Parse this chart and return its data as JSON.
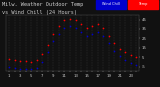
{
  "title": "Milw. Weather Outdoor Temp",
  "title2": "vs Wind Chill (24 Hours)",
  "bg_color": "#111111",
  "plot_bg": "#111111",
  "grid_color": "#444444",
  "temp_color": "#ff0000",
  "windchill_color": "#0000cc",
  "legend_temp_label": "Temp",
  "legend_wc_label": "Wind Chill",
  "x_hours": [
    1,
    2,
    3,
    4,
    5,
    6,
    7,
    8,
    9,
    10,
    11,
    12,
    13,
    14,
    15,
    16,
    17,
    18,
    19,
    20,
    21,
    22,
    23,
    24
  ],
  "temp": [
    3,
    2,
    1,
    1,
    0,
    2,
    8,
    18,
    30,
    38,
    44,
    46,
    44,
    40,
    36,
    38,
    40,
    36,
    28,
    20,
    14,
    10,
    7,
    5
  ],
  "windchill": [
    -5,
    -6,
    -7,
    -7,
    -8,
    -6,
    0,
    10,
    22,
    30,
    36,
    38,
    36,
    32,
    28,
    30,
    32,
    28,
    20,
    12,
    6,
    2,
    -1,
    -3
  ],
  "ylim": [
    -10,
    50
  ],
  "yticks": [
    -5,
    5,
    15,
    25,
    35,
    45
  ],
  "ytick_labels": [
    "-5",
    "5",
    "15",
    "25",
    "35",
    "45"
  ],
  "title_fontsize": 3.8,
  "tick_fontsize": 2.8,
  "marker_size": 1.5,
  "text_color": "#cccccc"
}
